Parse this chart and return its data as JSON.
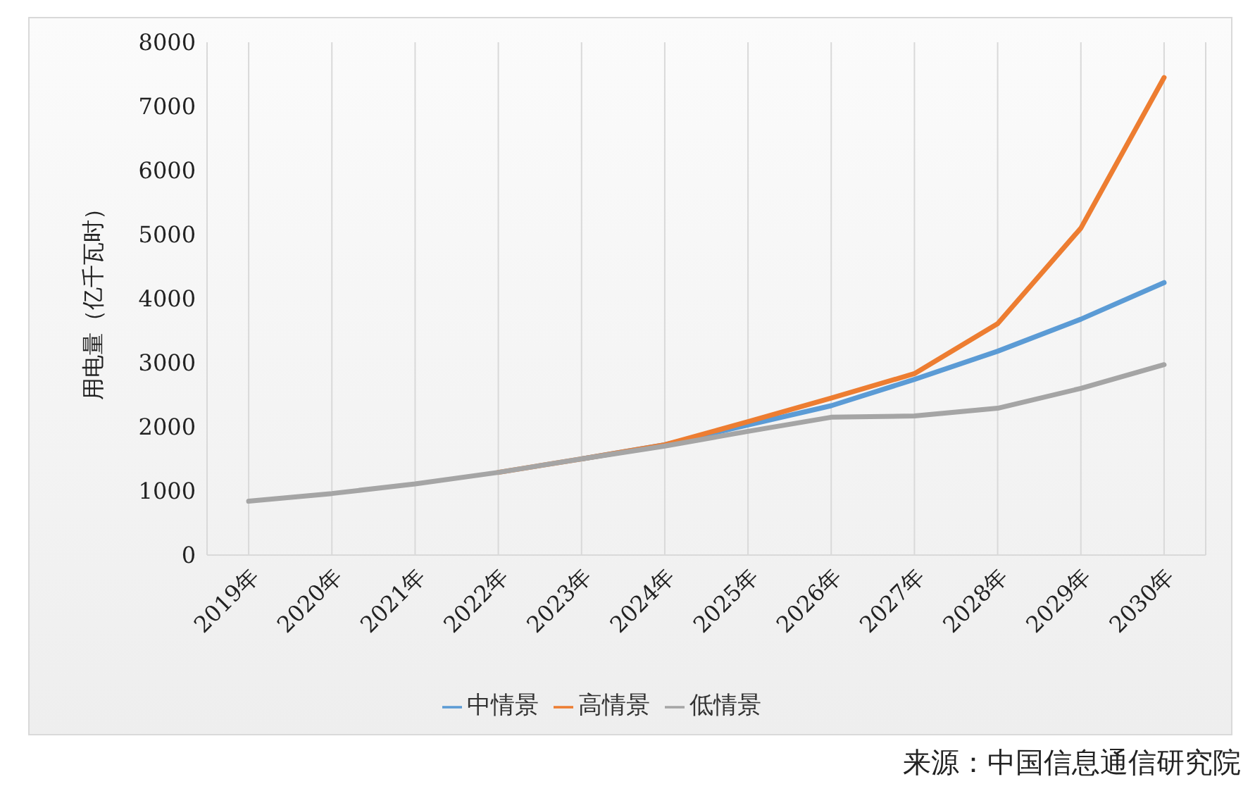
{
  "chart_data": {
    "type": "line",
    "ylabel": "用电量（亿千瓦时）",
    "categories": [
      "2019年",
      "2020年",
      "2021年",
      "2022年",
      "2023年",
      "2024年",
      "2025年",
      "2026年",
      "2027年",
      "2028年",
      "2029年",
      "2030年"
    ],
    "series": [
      {
        "name": "中情景",
        "color": "#5b9bd5",
        "values": [
          null,
          null,
          null,
          null,
          1500,
          1720,
          2030,
          2330,
          2740,
          3180,
          3680,
          4250
        ]
      },
      {
        "name": "高情景",
        "color": "#ed7d31",
        "values": [
          null,
          null,
          null,
          1290,
          1500,
          1720,
          2080,
          2450,
          2830,
          3610,
          5100,
          7450
        ]
      },
      {
        "name": "低情景",
        "color": "#a5a5a5",
        "values": [
          840,
          960,
          1110,
          1290,
          1500,
          1700,
          1930,
          2150,
          2170,
          2290,
          2600,
          2970
        ]
      }
    ],
    "ylim": [
      0,
      8000
    ],
    "yticks": [
      0,
      1000,
      2000,
      3000,
      4000,
      5000,
      6000,
      7000,
      8000
    ],
    "grid": "x",
    "legend": "bottom",
    "marker": "none",
    "line_style": "solid",
    "annotations": [
      "来源：中国信息通信研究院"
    ]
  }
}
